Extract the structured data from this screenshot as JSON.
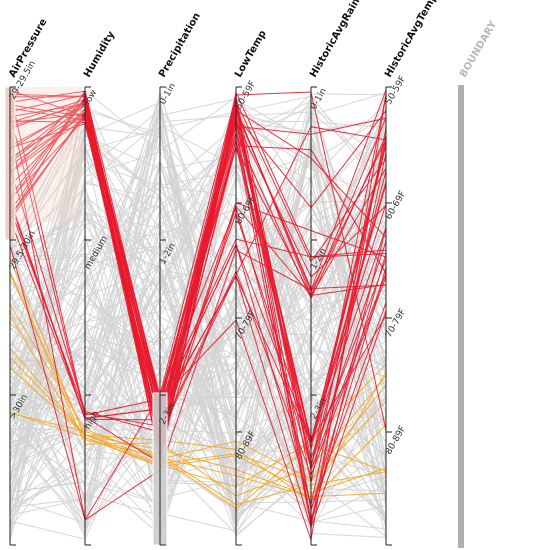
{
  "chart_data": {
    "type": "parallel-coordinates",
    "grid": false,
    "colors": {
      "background_lines": "#d3d3d3",
      "highlight_red": "#e8192c",
      "highlight_orange": "#f5a623",
      "brush": "#f2c9b8",
      "boundary_axis": "#b0b0b0"
    },
    "axes": [
      {
        "name": "AirPressure",
        "ticks": [
          "29-29.5in",
          "29.5-30in",
          ">30in"
        ],
        "boundary": false
      },
      {
        "name": "Humidity",
        "ticks": [
          "low",
          "medium",
          "high"
        ],
        "boundary": false
      },
      {
        "name": "Precipitation",
        "ticks": [
          "0-1in",
          "1-2in",
          "2-3in"
        ],
        "boundary": false
      },
      {
        "name": "LowTemp",
        "ticks": [
          "50-59F",
          "60-69F",
          "70-79F",
          "80-89F"
        ],
        "boundary": false
      },
      {
        "name": "HistoricAvgRainfall",
        "ticks": [
          "0-1in",
          "1-2in",
          "2-3in"
        ],
        "boundary": false
      },
      {
        "name": "HistoricAvgTemp",
        "ticks": [
          "50-59F",
          "60-69F",
          "70-79F",
          "80-89F"
        ],
        "boundary": false
      },
      {
        "name": "BOUNDARY",
        "ticks": [],
        "boundary": true
      }
    ],
    "brushes": [
      {
        "axis": "AirPressure",
        "range": [
          "29-29.5in",
          "29-29.5in"
        ]
      }
    ]
  }
}
